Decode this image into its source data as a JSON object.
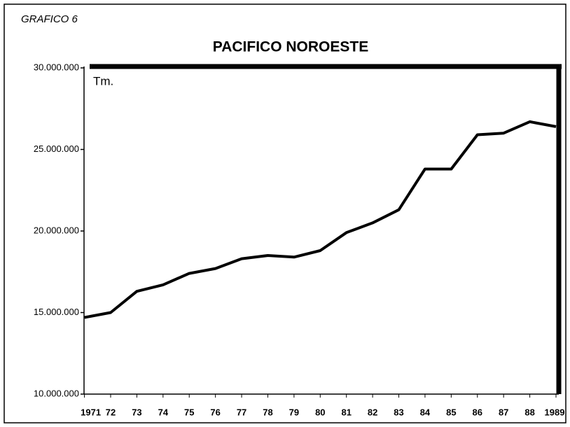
{
  "chart_data": {
    "type": "line",
    "label": "GRAFICO 6",
    "title": "PACIFICO NOROESTE",
    "y_unit": "Tm.",
    "categories": [
      "1971",
      "72",
      "73",
      "74",
      "75",
      "76",
      "77",
      "78",
      "79",
      "80",
      "81",
      "82",
      "83",
      "84",
      "85",
      "86",
      "87",
      "88",
      "1989"
    ],
    "values": [
      14700000,
      15000000,
      16300000,
      16700000,
      17400000,
      17700000,
      18300000,
      18500000,
      18400000,
      18800000,
      19900000,
      20500000,
      21300000,
      23800000,
      23800000,
      25900000,
      26000000,
      26700000,
      26400000
    ],
    "color": "#000000",
    "ylim": [
      10000000,
      30000000
    ],
    "yticks": [
      {
        "value": 10000000,
        "label": "10.000.000"
      },
      {
        "value": 15000000,
        "label": "15.000.000"
      },
      {
        "value": 20000000,
        "label": "20.000.000"
      },
      {
        "value": 25000000,
        "label": "25.000.000"
      },
      {
        "value": 30000000,
        "label": "30.000.000"
      }
    ],
    "grid": false
  }
}
